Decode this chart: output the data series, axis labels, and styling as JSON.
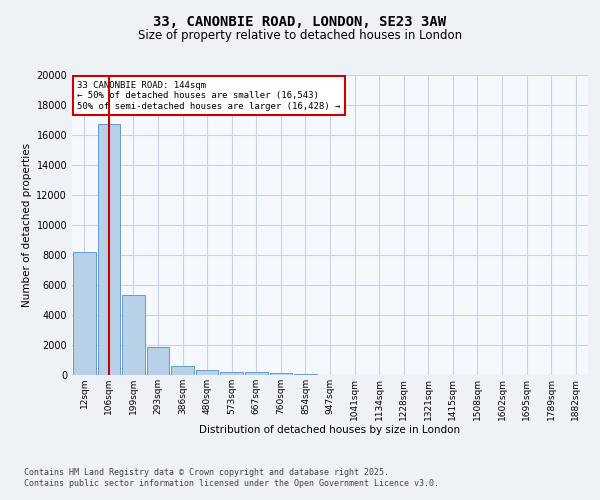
{
  "title": "33, CANONBIE ROAD, LONDON, SE23 3AW",
  "subtitle": "Size of property relative to detached houses in London",
  "xlabel": "Distribution of detached houses by size in London",
  "ylabel": "Number of detached properties",
  "bar_labels": [
    "12sqm",
    "106sqm",
    "199sqm",
    "293sqm",
    "386sqm",
    "480sqm",
    "573sqm",
    "667sqm",
    "760sqm",
    "854sqm",
    "947sqm",
    "1041sqm",
    "1134sqm",
    "1228sqm",
    "1321sqm",
    "1415sqm",
    "1508sqm",
    "1602sqm",
    "1695sqm",
    "1789sqm",
    "1882sqm"
  ],
  "bar_values": [
    8200,
    16700,
    5350,
    1850,
    620,
    330,
    225,
    175,
    130,
    50,
    30,
    15,
    10,
    5,
    3,
    2,
    1,
    1,
    1,
    1,
    0
  ],
  "bar_color": "#b8d0e8",
  "bar_edge_color": "#6699cc",
  "vline_x": 1.0,
  "vline_color": "#cc0000",
  "annotation_text": "33 CANONBIE ROAD: 144sqm\n← 50% of detached houses are smaller (16,543)\n50% of semi-detached houses are larger (16,428) →",
  "annotation_box_color": "#cc0000",
  "ylim": [
    0,
    20000
  ],
  "yticks": [
    0,
    2000,
    4000,
    6000,
    8000,
    10000,
    12000,
    14000,
    16000,
    18000,
    20000
  ],
  "bg_color": "#eef2f7",
  "plot_bg_color": "#f5f8fc",
  "grid_color": "#c8d4e4",
  "footer_line1": "Contains HM Land Registry data © Crown copyright and database right 2025.",
  "footer_line2": "Contains public sector information licensed under the Open Government Licence v3.0."
}
